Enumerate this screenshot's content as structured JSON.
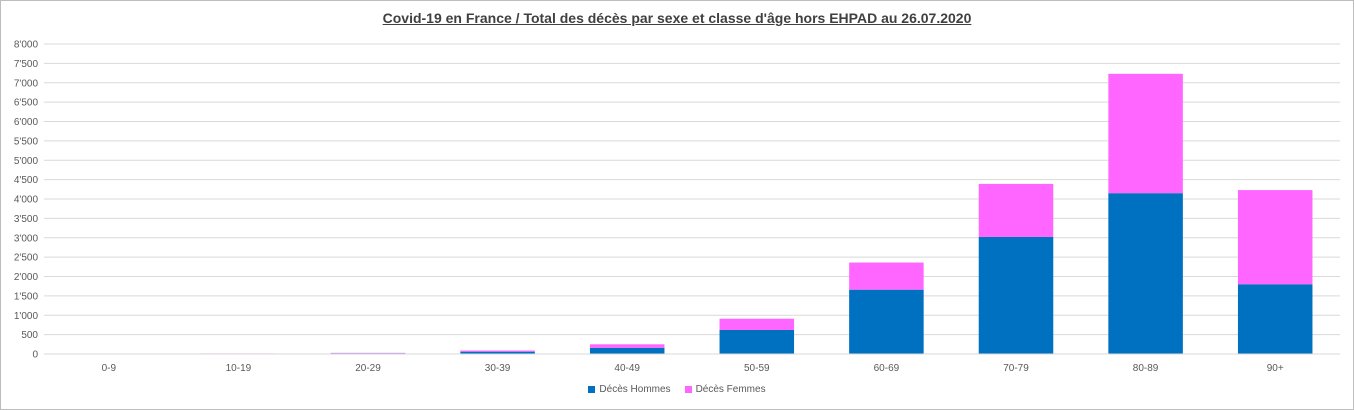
{
  "chart_data": {
    "type": "bar",
    "stacked": true,
    "title": "Covid-19 en France /  Total des décès par sexe et classe d'âge hors EHPAD au 26.07.2020",
    "xlabel": "",
    "ylabel": "",
    "categories": [
      "0-9",
      "10-19",
      "20-29",
      "30-39",
      "40-49",
      "50-59",
      "60-69",
      "70-79",
      "80-89",
      "90+"
    ],
    "series": [
      {
        "name": "Décès Hommes",
        "color": "#0070C0",
        "values": [
          5,
          10,
          20,
          60,
          160,
          620,
          1660,
          3020,
          4150,
          1800
        ]
      },
      {
        "name": "Décès Femmes",
        "color": "#FF66FF",
        "values": [
          3,
          5,
          10,
          30,
          90,
          290,
          700,
          1370,
          3080,
          2430
        ]
      }
    ],
    "ylim": [
      0,
      8000
    ],
    "y_ticks": [
      "0",
      "500",
      "1'000",
      "1'500",
      "2'000",
      "2'500",
      "3'000",
      "3'500",
      "4'000",
      "4'500",
      "5'000",
      "5'500",
      "6'000",
      "6'500",
      "7'000",
      "7'500",
      "8'000"
    ],
    "grid": true,
    "legend_position": "bottom"
  }
}
